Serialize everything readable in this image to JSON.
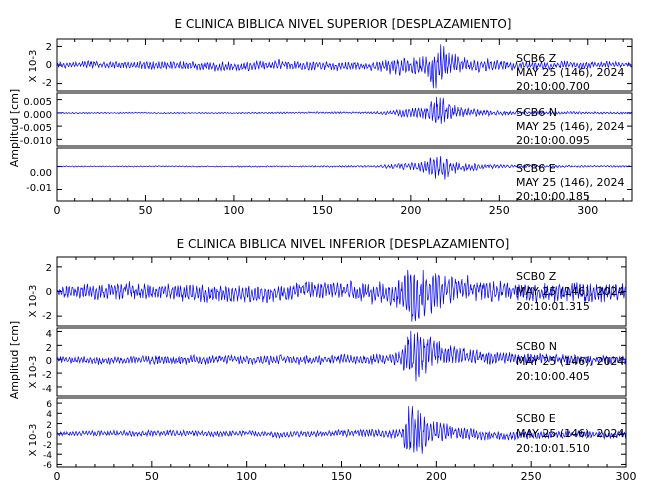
{
  "chart_data": [
    {
      "type": "line",
      "title": "E CLINICA BIBLICA NIVEL SUPERIOR [DESPLAZAMIENTO]",
      "ylabel": "Amplitud [cm]",
      "xlim": [
        0,
        325
      ],
      "xticks": [
        0,
        50,
        100,
        150,
        200,
        250,
        300
      ],
      "line_color": "#0000ff",
      "panels": [
        {
          "name": "top-z",
          "ylim": [
            -2.8,
            2.8
          ],
          "yticks": [
            "2",
            "0",
            "-2"
          ],
          "scale_label": "X 10-3",
          "annotation": [
            "SCB6   Z",
            "MAY 25 (146), 2024",
            "20:10:00.700"
          ],
          "series": {
            "x": [
              0,
              20,
              40,
              60,
              80,
              100,
              120,
              140,
              150,
              160,
              170,
              180,
              185,
              190,
              195,
              200,
              205,
              210,
              213,
              216,
              219,
              222,
              226,
              230,
              235,
              240,
              250,
              260,
              270,
              280,
              300,
              325
            ],
            "amp": [
              0.35,
              0.45,
              0.5,
              0.55,
              0.6,
              0.6,
              0.55,
              0.6,
              0.6,
              0.55,
              0.5,
              0.6,
              0.8,
              1.1,
              1.2,
              1.2,
              1.3,
              1.8,
              2.8,
              2.8,
              2.4,
              1.6,
              1.2,
              1.0,
              0.9,
              0.8,
              0.7,
              0.6,
              0.55,
              0.5,
              0.45,
              0.4
            ]
          }
        },
        {
          "name": "top-n",
          "ylim": [
            -0.0125,
            0.0075
          ],
          "yticks": [
            "0.005",
            "0.000",
            "-0.005",
            "-0.010"
          ],
          "scale_label": "",
          "annotation": [
            "SCB6   N",
            "MAY 25 (146), 2024",
            "20:10:00.095"
          ],
          "series": {
            "x": [
              0,
              50,
              100,
              150,
              180,
              188,
              195,
              200,
              205,
              210,
              213,
              216,
              219,
              222,
              226,
              230,
              235,
              240,
              250,
              260,
              280,
              300,
              325
            ],
            "amp": [
              0.0003,
              0.0003,
              0.0003,
              0.0004,
              0.0005,
              0.0012,
              0.0018,
              0.002,
              0.0025,
              0.0045,
              0.0075,
              0.0075,
              0.006,
              0.004,
              0.0028,
              0.0022,
              0.0018,
              0.0015,
              0.001,
              0.0008,
              0.0006,
              0.0005,
              0.0004
            ]
          }
        },
        {
          "name": "top-e",
          "ylim": [
            -0.015,
            0.008
          ],
          "yticks": [
            "0.00",
            "-0.01"
          ],
          "scale_label": "",
          "annotation": [
            "SCB6   E",
            "MAY 25 (146), 2024",
            "20:10:00.185"
          ],
          "series": {
            "x": [
              0,
              50,
              100,
              150,
              180,
              188,
              195,
              200,
              205,
              210,
              213,
              216,
              219,
              222,
              226,
              230,
              235,
              240,
              250,
              260,
              280,
              300,
              325
            ],
            "amp": [
              0.0003,
              0.0003,
              0.0003,
              0.0004,
              0.0005,
              0.0012,
              0.0018,
              0.002,
              0.0025,
              0.004,
              0.0075,
              0.0085,
              0.006,
              0.004,
              0.0028,
              0.0022,
              0.0018,
              0.0015,
              0.001,
              0.0008,
              0.0006,
              0.0005,
              0.0004
            ]
          }
        }
      ]
    },
    {
      "type": "line",
      "title": "E CLINICA BIBLICA NIVEL INFERIOR [DESPLAZAMIENTO]",
      "ylabel": "Amplitud [cm]",
      "xlim": [
        0,
        300
      ],
      "xticks": [
        0,
        50,
        100,
        150,
        200,
        250,
        300
      ],
      "line_color": "#0000ff",
      "panels": [
        {
          "name": "bottom-z",
          "ylim": [
            -2.8,
            2.8
          ],
          "yticks": [
            "2",
            "0",
            "-2"
          ],
          "scale_label": "X 10-3",
          "annotation": [
            "SCB0   Z",
            "MAY 25 (146), 2024",
            "20:10:01.315"
          ],
          "series": {
            "x": [
              0,
              20,
              40,
              60,
              80,
              100,
              120,
              140,
              155,
              165,
              175,
              182,
              186,
              189,
              192,
              196,
              200,
              205,
              210,
              220,
              240,
              260,
              280,
              300
            ],
            "amp": [
              0.6,
              0.8,
              0.8,
              0.8,
              0.85,
              0.85,
              0.8,
              0.8,
              0.85,
              1.0,
              1.2,
              1.6,
              2.8,
              2.8,
              2.6,
              2.2,
              1.8,
              1.5,
              1.3,
              1.1,
              1.0,
              1.0,
              1.0,
              0.95
            ]
          }
        },
        {
          "name": "bottom-n",
          "ylim": [
            -5.3,
            4.5
          ],
          "yticks": [
            "4",
            "2",
            "0",
            "-2",
            "-4"
          ],
          "scale_label": "X 10-3",
          "annotation": [
            "SCB0   N",
            "MAY 25 (146), 2024",
            "20:10:00.405"
          ],
          "series": {
            "x": [
              0,
              20,
              40,
              60,
              80,
              100,
              120,
              140,
              155,
              165,
              175,
              182,
              186,
              189,
              192,
              196,
              200,
              205,
              210,
              220,
              240,
              260,
              280,
              300
            ],
            "amp": [
              0.5,
              0.6,
              0.7,
              0.8,
              0.8,
              0.8,
              0.8,
              0.8,
              0.8,
              0.9,
              1.0,
              1.6,
              4.5,
              5.0,
              4.0,
              3.0,
              2.4,
              2.0,
              1.6,
              1.3,
              1.0,
              0.9,
              0.8,
              0.8
            ]
          }
        },
        {
          "name": "bottom-e",
          "ylim": [
            -6.5,
            7
          ],
          "yticks": [
            "6",
            "4",
            "2",
            "0",
            "-2",
            "-4",
            "-6"
          ],
          "scale_label": "X 10-3",
          "annotation": [
            "SCB0   E",
            "MAY 25 (146), 2024",
            "20:10:01.510"
          ],
          "series": {
            "x": [
              0,
              20,
              40,
              60,
              80,
              100,
              120,
              140,
              155,
              165,
              175,
              182,
              186,
              189,
              192,
              196,
              200,
              205,
              210,
              220,
              240,
              260,
              280,
              300
            ],
            "amp": [
              0.5,
              0.6,
              0.7,
              0.7,
              0.7,
              0.7,
              0.7,
              0.7,
              0.8,
              0.9,
              1.0,
              1.6,
              6.5,
              6.5,
              4.5,
              3.0,
              2.4,
              2.0,
              1.6,
              1.3,
              1.0,
              0.9,
              0.8,
              0.8
            ]
          }
        }
      ]
    }
  ]
}
